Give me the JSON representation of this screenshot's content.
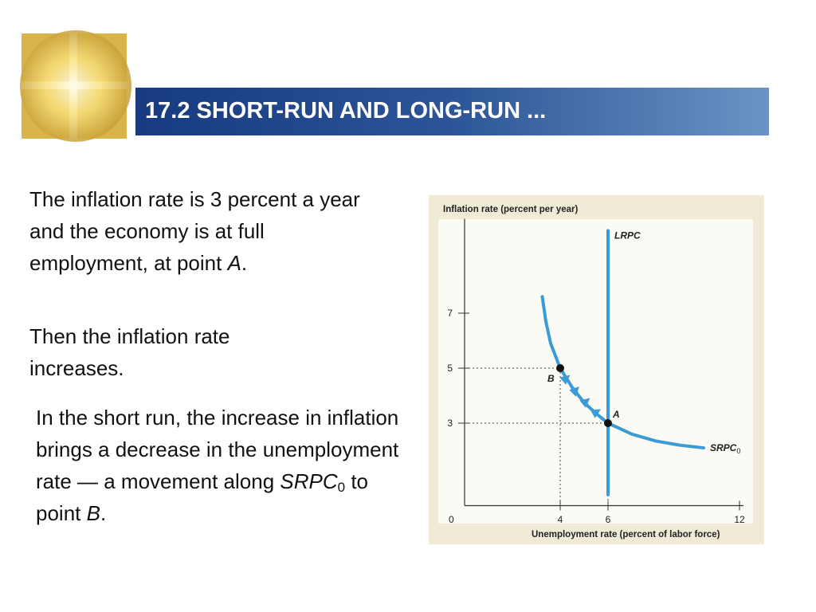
{
  "header": {
    "title": "17.2 SHORT-RUN AND LONG-RUN ..."
  },
  "paragraphs": [
    [
      "The inflation rate is 3 percent a year and the economy is at full employment, at point ",
      "A",
      "."
    ],
    [
      "Then the inflation rate increases."
    ],
    [
      "In the short run, the increase in inflation brings a decrease in the unemployment rate — a movement along ",
      "SRPC",
      "0",
      " to point ",
      "B",
      "."
    ]
  ],
  "chart_data": {
    "type": "line",
    "y_label": "Inflation rate (percent per year)",
    "x_label": "Unemployment rate (percent of labor force)",
    "origin_label": "0",
    "xlim": [
      0,
      12
    ],
    "ylim": [
      0,
      10
    ],
    "xticks": [
      4,
      6,
      12
    ],
    "yticks": [
      3,
      5,
      7
    ],
    "series": [
      {
        "name": "SRPC",
        "subscript": "0",
        "color": "#3b9bd6",
        "x": [
          3.25,
          3.4,
          3.6,
          4,
          4.5,
          5,
          5.5,
          6,
          7,
          8,
          9,
          10
        ],
        "values": [
          7.6,
          6.7,
          5.9,
          5,
          4.3,
          3.75,
          3.35,
          3,
          2.6,
          2.35,
          2.2,
          2.1
        ]
      },
      {
        "name": "LRPC",
        "color": "#3b9bd6",
        "x": [
          6,
          6
        ],
        "values": [
          0.4,
          10
        ]
      }
    ],
    "points": [
      {
        "label": "A",
        "x": 6,
        "y": 3
      },
      {
        "label": "B",
        "x": 4,
        "y": 5
      }
    ]
  }
}
